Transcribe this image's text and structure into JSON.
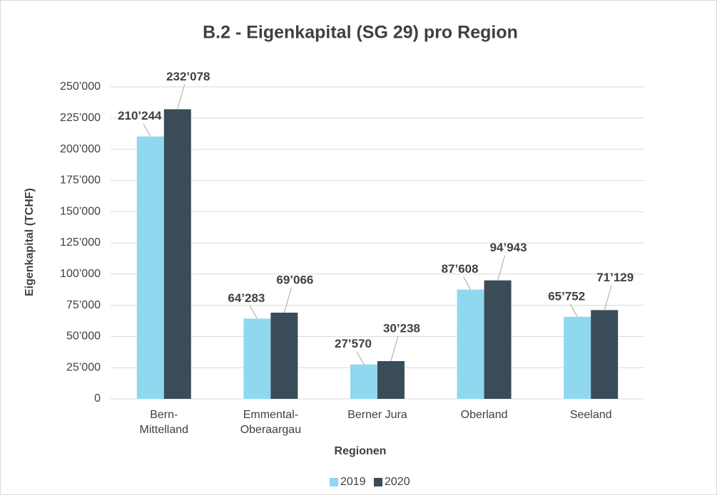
{
  "chart_data": {
    "type": "bar",
    "title": "B.2 - Eigenkapital (SG 29) pro Region",
    "x_label": "Regionen",
    "y_label": "Eigenkapital (TCHF)",
    "categories": [
      "Bern-Mittelland",
      "Emmental-Oberaargau",
      "Berner Jura",
      "Oberland",
      "Seeland"
    ],
    "series": [
      {
        "name": "2019",
        "color": "#8fd8ef",
        "values": [
          210244,
          64283,
          27570,
          87608,
          65752
        ],
        "value_labels": [
          "210’244",
          "64’283",
          "27’570",
          "87’608",
          "65’752"
        ]
      },
      {
        "name": "2020",
        "color": "#3a4c57",
        "values": [
          232078,
          69066,
          30238,
          94943,
          71129
        ],
        "value_labels": [
          "232’078",
          "69’066",
          "30’238",
          "94’943",
          "71’129"
        ]
      }
    ],
    "ylim": [
      0,
      250000
    ],
    "yticks": [
      0,
      {
        "value": 25000,
        "label": "25’000"
      },
      {
        "value": 50000,
        "label": "50’000"
      },
      {
        "value": 75000,
        "label": "75’000"
      },
      {
        "value": 100000,
        "label": "100’000"
      },
      {
        "value": 125000,
        "label": "125’000"
      },
      {
        "value": 150000,
        "label": "150’000"
      },
      {
        "value": 175000,
        "label": "175’000"
      },
      {
        "value": 200000,
        "label": "200’000"
      },
      {
        "value": 225000,
        "label": "225’000"
      },
      {
        "value": 250000,
        "label": "250’000"
      }
    ],
    "grid": true,
    "legend": "bottom"
  }
}
